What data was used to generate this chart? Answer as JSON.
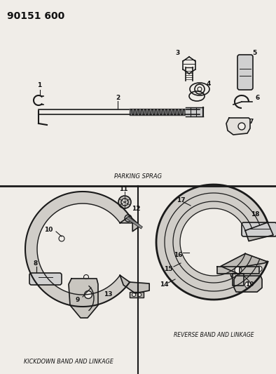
{
  "title": "90151 600",
  "bg_color": "#f0ede8",
  "line_color": "#1a1a1a",
  "text_color": "#111111",
  "parking_sprag_label": "PARKING SPRAG",
  "kickdown_label": "KICKDOWN BAND AND LINKAGE",
  "reverse_label": "REVERSE BAND AND LINKAGE",
  "figsize": [
    3.94,
    5.33
  ],
  "dpi": 100,
  "label_fontsize": 6.5,
  "title_fontsize": 10
}
